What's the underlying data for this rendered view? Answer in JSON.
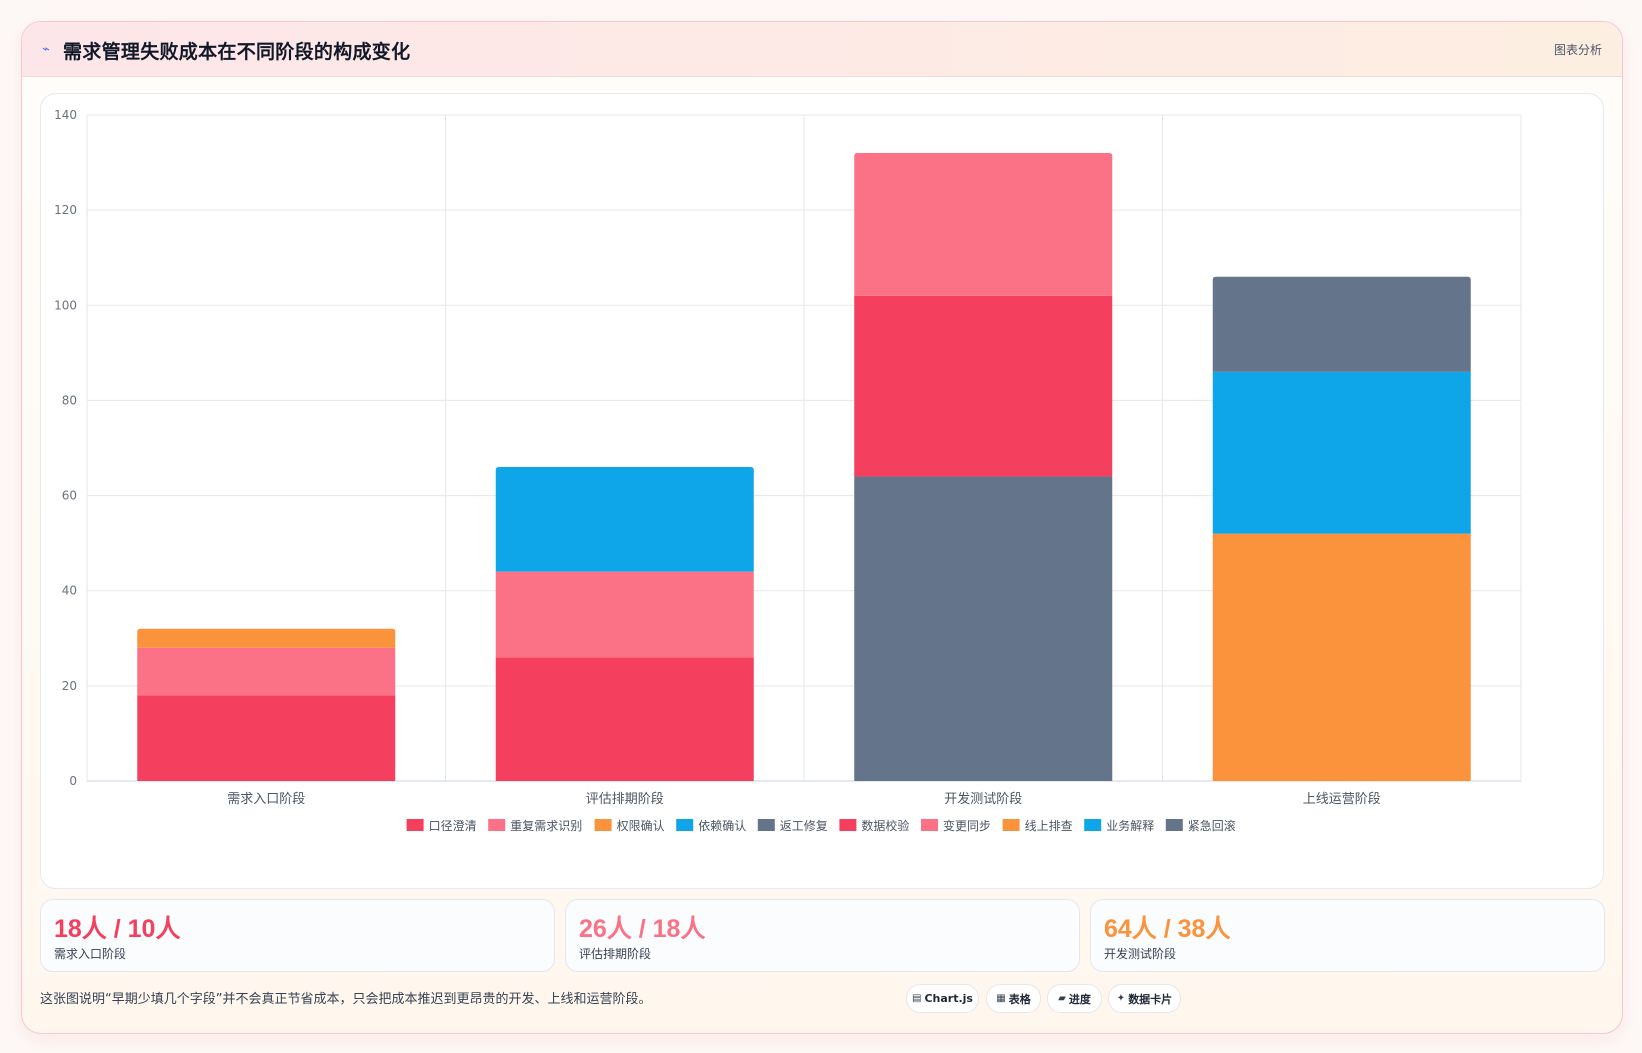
{
  "header": {
    "icon": "chart-trend-icon",
    "title": "需求管理失败成本在不同阶段的构成变化",
    "tag": "图表分析"
  },
  "chart_data": {
    "type": "bar",
    "stacked": true,
    "categories": [
      "需求入口阶段",
      "评估排期阶段",
      "开发测试阶段",
      "上线运营阶段"
    ],
    "ylim": [
      0,
      140
    ],
    "yticks": [
      0,
      20,
      40,
      60,
      80,
      100,
      120,
      140
    ],
    "grid": true,
    "legend_position": "bottom",
    "series": [
      {
        "name": "口径澄清",
        "color": "#f43f5e",
        "values": [
          18,
          0,
          0,
          0
        ]
      },
      {
        "name": "重复需求识别",
        "color": "#fb7185",
        "values": [
          10,
          0,
          0,
          0
        ]
      },
      {
        "name": "权限确认",
        "color": "#fb923c",
        "values": [
          4,
          0,
          0,
          0
        ]
      },
      {
        "name": "依赖确认",
        "color": "#0ea5e9",
        "values": [
          0,
          22,
          0,
          0
        ]
      },
      {
        "name": "返工修复",
        "color": "#64748b",
        "values": [
          0,
          0,
          64,
          0
        ]
      },
      {
        "name": "数据校验",
        "color": "#f43f5e",
        "values": [
          0,
          26,
          38,
          0
        ]
      },
      {
        "name": "变更同步",
        "color": "#fb7185",
        "values": [
          0,
          18,
          30,
          0
        ]
      },
      {
        "name": "线上排查",
        "color": "#fb923c",
        "values": [
          0,
          0,
          0,
          52
        ]
      },
      {
        "name": "业务解释",
        "color": "#0ea5e9",
        "values": [
          0,
          0,
          0,
          34
        ]
      },
      {
        "name": "紧急回滚",
        "color": "#64748b",
        "values": [
          0,
          0,
          0,
          20
        ]
      }
    ],
    "stack_order": [
      [
        "口径澄清",
        "重复需求识别",
        "权限确认"
      ],
      [
        "数据校验",
        "变更同步",
        "依赖确认"
      ],
      [
        "返工修复",
        "数据校验",
        "变更同步"
      ],
      [
        "线上排查",
        "业务解释",
        "紧急回滚"
      ]
    ]
  },
  "stats": [
    {
      "value": "18人 / 10人",
      "label": "需求入口阶段",
      "color": "#f43f5e"
    },
    {
      "value": "26人 / 18人",
      "label": "评估排期阶段",
      "color": "#fb7185"
    },
    {
      "value": "64人 / 38人",
      "label": "开发测试阶段",
      "color": "#fb923c"
    }
  ],
  "footnote": "这张图说明“早期少填几个字段”并不会真正节省成本，只会把成本推迟到更昂贵的开发、上线和运营阶段。",
  "chips": [
    {
      "glyph": "▤",
      "label": "Chart.js",
      "icon": "chart-icon"
    },
    {
      "glyph": "▦",
      "label": "表格",
      "icon": "table-icon"
    },
    {
      "glyph": "▰",
      "label": "进度",
      "icon": "progress-icon"
    },
    {
      "glyph": "✦",
      "label": "数据卡片",
      "icon": "sparkle-icon"
    }
  ]
}
